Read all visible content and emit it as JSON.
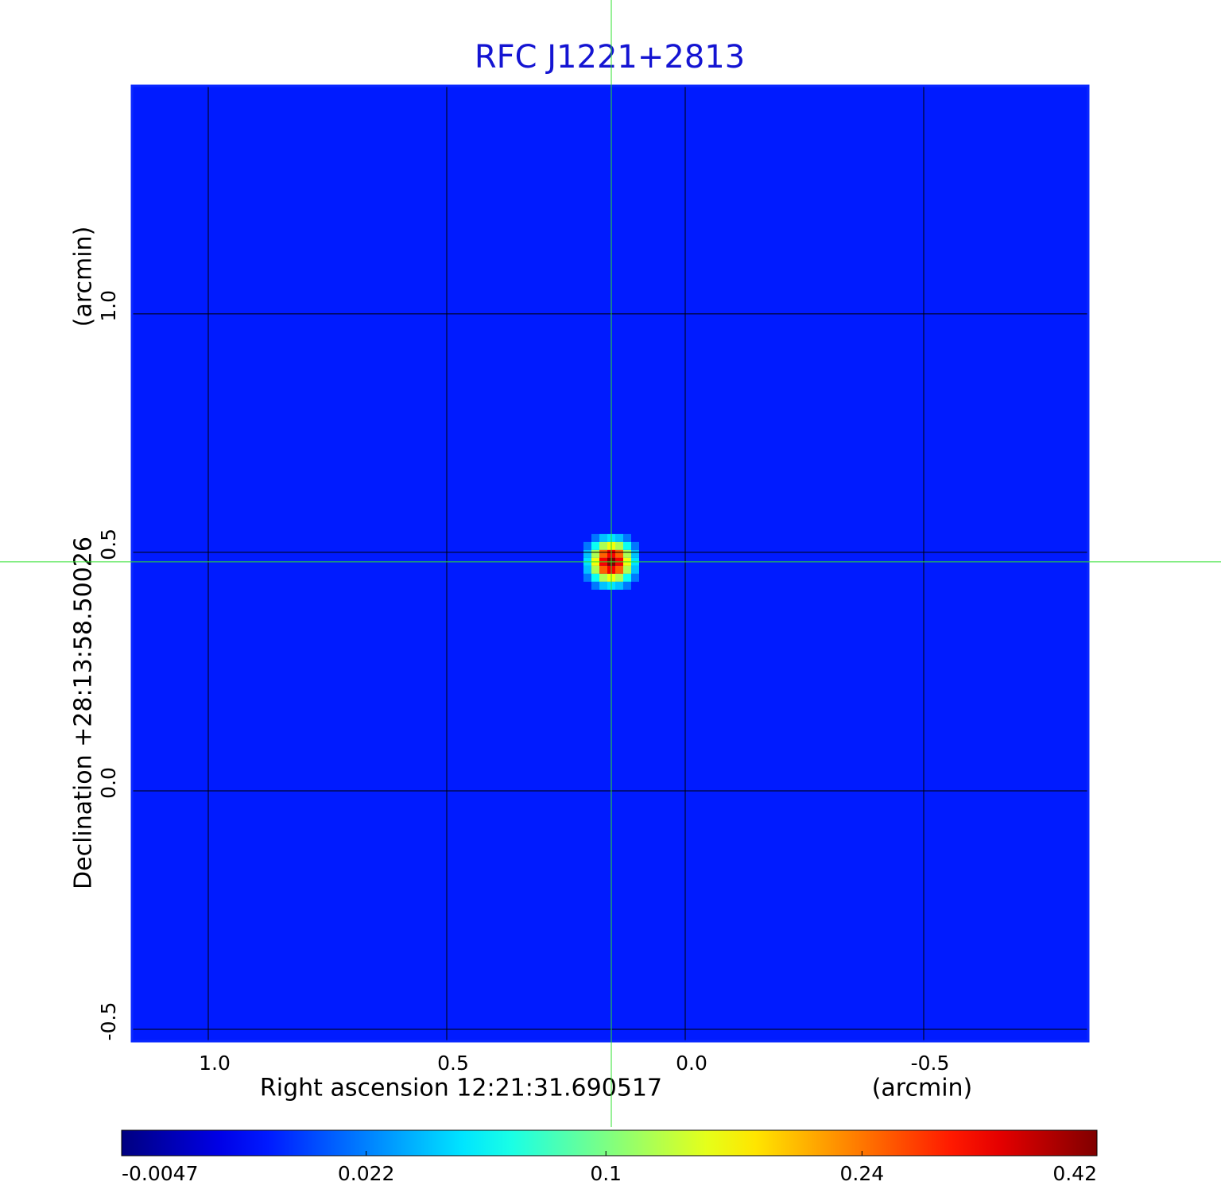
{
  "chart_data": {
    "type": "image",
    "title": "RFC J1221+2813",
    "xlabel": "Right ascension  12:21:31.690517",
    "xunit": "(arcmin)",
    "ylabel": "Declination  +28:13:58.50026",
    "yunit": "(arcmin)",
    "xlim": [
      1.16,
      -0.845
    ],
    "ylim": [
      -0.525,
      1.478
    ],
    "xticks": [
      {
        "value": 1,
        "label": "1.0"
      },
      0.5,
      {
        "value": 0,
        "label": "0.0"
      },
      -0.5
    ],
    "yticks": [
      -0.5,
      {
        "value": 0,
        "label": "0.0"
      },
      0.5,
      {
        "value": 1,
        "label": "1.0"
      }
    ],
    "grid": true,
    "colormap": "jet",
    "colorbar_scale": "sqrt",
    "colorbar_lim": [
      -0.0047,
      0.42
    ],
    "colorbar_ticks": [
      -0.0047,
      0.022,
      0.1,
      0.24,
      0.42
    ],
    "background": 0.005,
    "source": {
      "x": 0.155,
      "y": 0.48,
      "peak": 0.42
    }
  }
}
